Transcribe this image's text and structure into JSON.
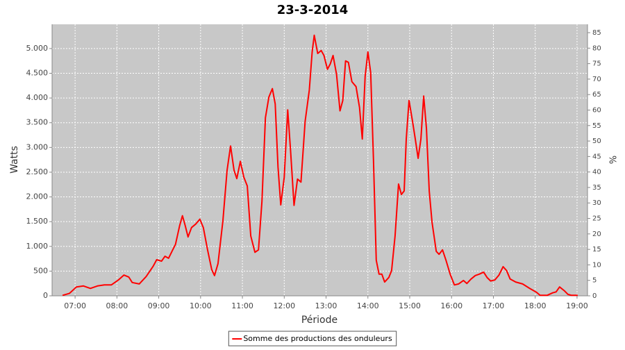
{
  "chart_data": {
    "type": "line",
    "title": "23-3-2014",
    "xlabel": "Période",
    "ylabel": "Watts",
    "y2label": "%",
    "x": [
      "06:42",
      "06:52",
      "07:02",
      "07:12",
      "07:22",
      "07:32",
      "07:42",
      "07:52",
      "08:02",
      "08:10",
      "08:17",
      "08:22",
      "08:32",
      "08:42",
      "08:52",
      "08:57",
      "09:04",
      "09:09",
      "09:14",
      "09:20",
      "09:24",
      "09:30",
      "09:34",
      "09:38",
      "09:42",
      "09:47",
      "09:53",
      "09:59",
      "10:04",
      "10:10",
      "10:16",
      "10:20",
      "10:25",
      "10:32",
      "10:38",
      "10:43",
      "10:48",
      "10:52",
      "10:57",
      "11:02",
      "11:07",
      "11:12",
      "11:18",
      "11:23",
      "11:28",
      "11:33",
      "11:38",
      "11:43",
      "11:47",
      "11:51",
      "11:55",
      "12:00",
      "12:05",
      "12:09",
      "12:14",
      "12:19",
      "12:24",
      "12:30",
      "12:36",
      "12:40",
      "12:43",
      "12:48",
      "12:53",
      "12:57",
      "13:02",
      "13:06",
      "13:10",
      "13:15",
      "13:20",
      "13:24",
      "13:28",
      "13:32",
      "13:37",
      "13:43",
      "13:48",
      "13:52",
      "13:56",
      "14:00",
      "14:04",
      "14:08",
      "14:12",
      "14:16",
      "14:20",
      "14:24",
      "14:30",
      "14:34",
      "14:39",
      "14:44",
      "14:48",
      "14:52",
      "14:55",
      "14:59",
      "15:04",
      "15:08",
      "15:12",
      "15:16",
      "15:20",
      "15:24",
      "15:28",
      "15:32",
      "15:38",
      "15:42",
      "15:47",
      "15:52",
      "15:58",
      "16:04",
      "16:10",
      "16:17",
      "16:22",
      "16:28",
      "16:34",
      "16:40",
      "16:46",
      "16:51",
      "16:56",
      "17:02",
      "17:08",
      "17:14",
      "17:19",
      "17:24",
      "17:32",
      "17:42",
      "17:52",
      "18:02",
      "18:07",
      "18:17",
      "18:25",
      "18:30",
      "18:35",
      "18:42",
      "18:47",
      "18:52",
      "19:01"
    ],
    "series": [
      {
        "name": "Somme des productions des onduleurs",
        "color": "#ff0000",
        "values": [
          10,
          50,
          180,
          200,
          150,
          200,
          220,
          220,
          320,
          420,
          380,
          270,
          240,
          390,
          600,
          730,
          700,
          800,
          760,
          930,
          1040,
          1420,
          1620,
          1420,
          1190,
          1380,
          1450,
          1550,
          1380,
          930,
          530,
          410,
          650,
          1520,
          2540,
          3030,
          2540,
          2370,
          2720,
          2400,
          2220,
          1210,
          880,
          930,
          1910,
          3600,
          4020,
          4190,
          3880,
          2610,
          1840,
          2400,
          3760,
          2960,
          1830,
          2360,
          2300,
          3530,
          4160,
          4930,
          5270,
          4900,
          4960,
          4860,
          4580,
          4690,
          4860,
          4480,
          3740,
          3950,
          4750,
          4720,
          4330,
          4230,
          3810,
          3170,
          4440,
          4930,
          4510,
          2750,
          720,
          440,
          440,
          280,
          370,
          510,
          1210,
          2260,
          2050,
          2120,
          3170,
          3950,
          3530,
          3170,
          2780,
          3170,
          4040,
          3380,
          2120,
          1490,
          900,
          840,
          930,
          720,
          440,
          220,
          240,
          310,
          250,
          340,
          410,
          440,
          480,
          370,
          300,
          320,
          420,
          590,
          510,
          340,
          280,
          240,
          150,
          70,
          10,
          10,
          60,
          80,
          180,
          100,
          30,
          10,
          10
        ]
      }
    ],
    "xlim": [
      "06:27",
      "19:15"
    ],
    "xticks": [
      "07:00",
      "08:00",
      "09:00",
      "10:00",
      "11:00",
      "12:00",
      "13:00",
      "14:00",
      "15:00",
      "16:00",
      "17:00",
      "18:00",
      "19:00"
    ],
    "ylim": [
      0,
      5490
    ],
    "yticks": [
      0,
      500,
      {
        "value": 1000,
        "label": "1.000"
      },
      {
        "value": 1500,
        "label": "1.500"
      },
      {
        "value": 2000,
        "label": "2.000"
      },
      {
        "value": 2500,
        "label": "2.500"
      },
      {
        "value": 3000,
        "label": "3.000"
      },
      {
        "value": 3500,
        "label": "3.500"
      },
      {
        "value": 4000,
        "label": "4.000"
      },
      {
        "value": 4500,
        "label": "4.500"
      },
      {
        "value": 5000,
        "label": "5.000"
      }
    ],
    "y2lim": [
      0,
      87.7
    ],
    "y2ticks": [
      0,
      5,
      10,
      15,
      20,
      25,
      30,
      35,
      40,
      45,
      50,
      55,
      60,
      65,
      70,
      75,
      80,
      85
    ],
    "grid": true,
    "legend": "bottom"
  }
}
